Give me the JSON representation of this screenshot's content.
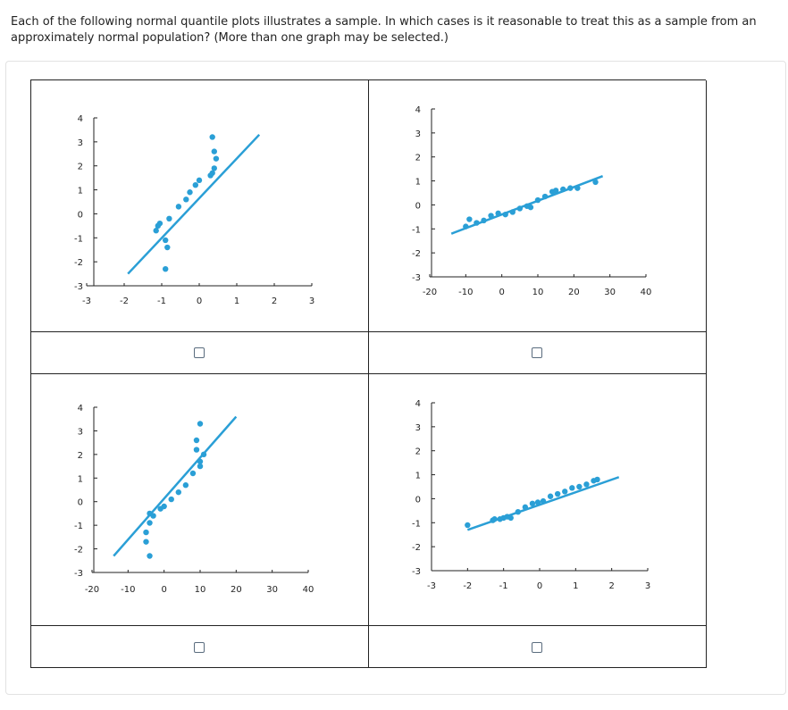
{
  "question": "Each of the following normal quantile plots illustrates a sample. In which cases is it reasonable to treat this as a sample from an approximately normal population? (More than one graph may be selected.)",
  "colors": {
    "points": "#2a9fd6",
    "line": "#2a9fd6",
    "axis": "#222222"
  },
  "checkboxes": [
    {
      "checked": false
    },
    {
      "checked": false
    },
    {
      "checked": false
    },
    {
      "checked": false
    }
  ],
  "chart_data": [
    {
      "type": "scatter",
      "title": "",
      "xlabel": "",
      "ylabel": "",
      "xlim": [
        -3,
        3
      ],
      "ylim": [
        -3,
        4
      ],
      "xticks": [
        "-3",
        "-2",
        "-1",
        "0",
        "1",
        "2",
        "3"
      ],
      "yticks": [
        "-3",
        "-2",
        "-1",
        "0",
        "1",
        "2",
        "3",
        "4"
      ],
      "line": [
        [
          -1.9,
          -2.5
        ],
        [
          1.6,
          3.3
        ]
      ],
      "points": [
        [
          -1.1,
          -0.5
        ],
        [
          -1.15,
          -0.7
        ],
        [
          -1.05,
          -0.4
        ],
        [
          -0.9,
          -1.1
        ],
        [
          -0.85,
          -1.4
        ],
        [
          -0.9,
          -2.3
        ],
        [
          -0.8,
          -0.2
        ],
        [
          -0.55,
          0.3
        ],
        [
          -0.35,
          0.6
        ],
        [
          -0.25,
          0.9
        ],
        [
          -0.1,
          1.2
        ],
        [
          0.0,
          1.4
        ],
        [
          0.3,
          1.6
        ],
        [
          0.35,
          1.7
        ],
        [
          0.4,
          1.9
        ],
        [
          0.45,
          2.3
        ],
        [
          0.4,
          2.6
        ],
        [
          0.35,
          3.2
        ]
      ]
    },
    {
      "type": "scatter",
      "title": "",
      "xlabel": "",
      "ylabel": "",
      "xlim": [
        -20,
        40
      ],
      "ylim": [
        -3,
        4
      ],
      "xticks": [
        "-20",
        "-10",
        "0",
        "10",
        "20",
        "30",
        "40"
      ],
      "yticks": [
        "-3",
        "-2",
        "-1",
        "0",
        "1",
        "2",
        "3",
        "4"
      ],
      "line": [
        [
          -14,
          -1.2
        ],
        [
          28,
          1.2
        ]
      ],
      "points": [
        [
          -10,
          -0.9
        ],
        [
          -9,
          -0.6
        ],
        [
          -7,
          -0.75
        ],
        [
          -5,
          -0.65
        ],
        [
          -3,
          -0.45
        ],
        [
          -1,
          -0.35
        ],
        [
          1,
          -0.4
        ],
        [
          3,
          -0.3
        ],
        [
          5,
          -0.15
        ],
        [
          7,
          -0.05
        ],
        [
          8,
          -0.1
        ],
        [
          10,
          0.2
        ],
        [
          12,
          0.35
        ],
        [
          14,
          0.55
        ],
        [
          15,
          0.6
        ],
        [
          17,
          0.65
        ],
        [
          19,
          0.7
        ],
        [
          21,
          0.7
        ],
        [
          26,
          0.95
        ]
      ]
    },
    {
      "type": "scatter",
      "title": "",
      "xlabel": "",
      "ylabel": "",
      "xlim": [
        -20,
        40
      ],
      "ylim": [
        -3,
        4
      ],
      "xticks": [
        "-20",
        "-10",
        "0",
        "10",
        "20",
        "30",
        "40"
      ],
      "yticks": [
        "-3",
        "-2",
        "-1",
        "0",
        "1",
        "2",
        "3",
        "4"
      ],
      "line": [
        [
          -14,
          -2.3
        ],
        [
          20,
          3.6
        ]
      ],
      "points": [
        [
          -4,
          -0.5
        ],
        [
          -3,
          -0.6
        ],
        [
          -4,
          -0.9
        ],
        [
          -5,
          -1.3
        ],
        [
          -5,
          -1.7
        ],
        [
          -4,
          -2.3
        ],
        [
          -1,
          -0.3
        ],
        [
          0,
          -0.2
        ],
        [
          2,
          0.1
        ],
        [
          4,
          0.4
        ],
        [
          6,
          0.7
        ],
        [
          8,
          1.2
        ],
        [
          10,
          1.5
        ],
        [
          10,
          1.7
        ],
        [
          11,
          2.0
        ],
        [
          9,
          2.2
        ],
        [
          9,
          2.6
        ],
        [
          10,
          3.3
        ]
      ]
    },
    {
      "type": "scatter",
      "title": "",
      "xlabel": "",
      "ylabel": "",
      "xlim": [
        -3,
        3
      ],
      "ylim": [
        -3,
        4
      ],
      "xticks": [
        "-3",
        "-2",
        "-1",
        "0",
        "1",
        "2",
        "3"
      ],
      "yticks": [
        "-3",
        "-2",
        "-1",
        "0",
        "1",
        "2",
        "3",
        "4"
      ],
      "line": [
        [
          -2.0,
          -1.3
        ],
        [
          2.2,
          0.9
        ]
      ],
      "points": [
        [
          -2.0,
          -1.1
        ],
        [
          -1.3,
          -0.9
        ],
        [
          -1.25,
          -0.85
        ],
        [
          -1.1,
          -0.85
        ],
        [
          -1.0,
          -0.8
        ],
        [
          -0.9,
          -0.75
        ],
        [
          -0.8,
          -0.8
        ],
        [
          -0.6,
          -0.55
        ],
        [
          -0.4,
          -0.35
        ],
        [
          -0.2,
          -0.2
        ],
        [
          -0.05,
          -0.15
        ],
        [
          0.1,
          -0.1
        ],
        [
          0.3,
          0.1
        ],
        [
          0.5,
          0.2
        ],
        [
          0.7,
          0.3
        ],
        [
          0.9,
          0.45
        ],
        [
          1.1,
          0.5
        ],
        [
          1.3,
          0.6
        ],
        [
          1.5,
          0.75
        ],
        [
          1.6,
          0.8
        ]
      ]
    }
  ]
}
